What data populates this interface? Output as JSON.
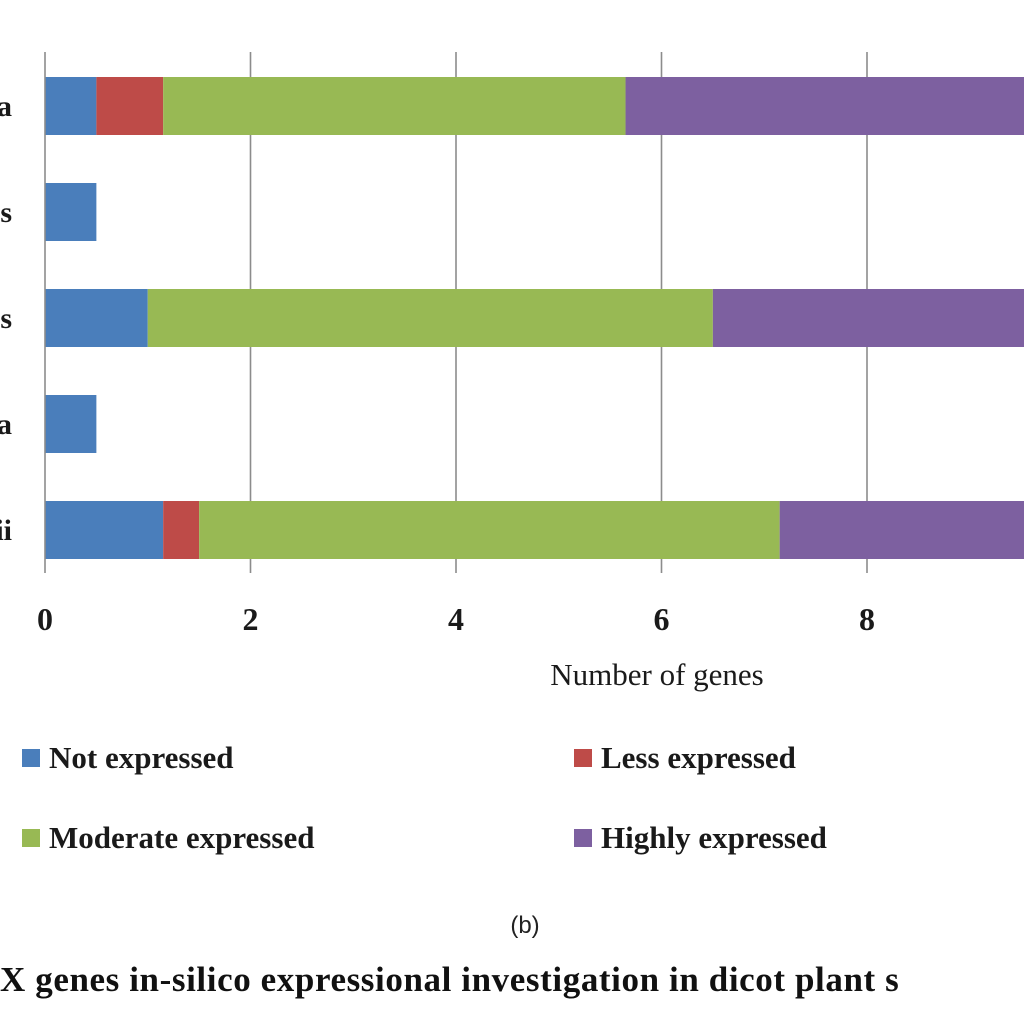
{
  "chart_data": {
    "type": "bar",
    "orientation": "horizontal",
    "stacked": true,
    "categories": [
      "a",
      "s",
      "s",
      "a",
      "ii"
    ],
    "series": [
      {
        "name": "Not expressed",
        "color": "#4a7ebb",
        "values": [
          0.5,
          0.5,
          1.0,
          0.5,
          1.15
        ]
      },
      {
        "name": "Less expressed",
        "color": "#be4b48",
        "values": [
          0.65,
          0,
          0,
          0,
          0.35
        ]
      },
      {
        "name": "Moderate expressed",
        "color": "#98b954",
        "values": [
          4.5,
          0,
          5.5,
          0,
          5.65
        ]
      },
      {
        "name": "Highly expressed",
        "color": "#7d60a0",
        "values": [
          4.6,
          0,
          3.8,
          0,
          3.0
        ]
      }
    ],
    "xlabel": "Number of genes",
    "xlim": [
      0,
      10
    ],
    "xticks": [
      0,
      2,
      4,
      6,
      8
    ],
    "grid": true,
    "legend_position": "bottom"
  },
  "panel_label": "(b)",
  "caption": "X genes in-silico expressional investigation in dicot plant s"
}
